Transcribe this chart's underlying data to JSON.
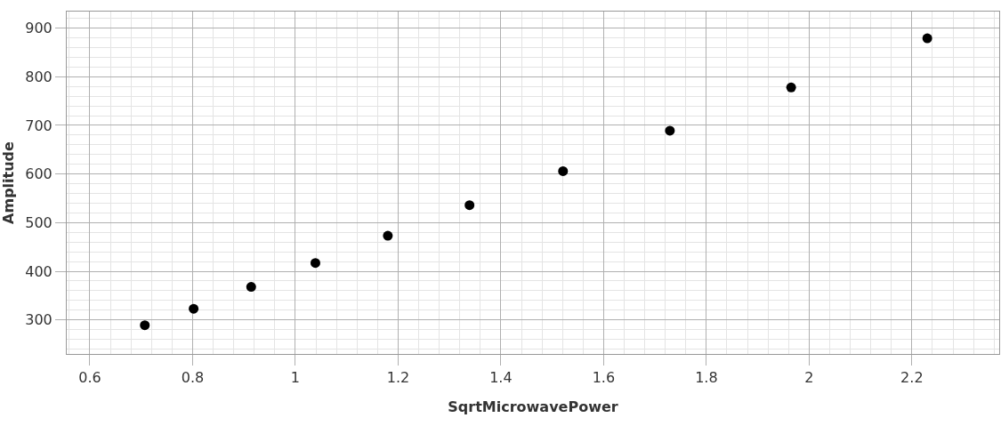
{
  "chart_data": {
    "type": "scatter",
    "xlabel": "SqrtMicrowavePower",
    "ylabel": "Amplitude",
    "x": [
      0.707,
      0.802,
      0.914,
      1.039,
      1.18,
      1.339,
      1.521,
      1.729,
      1.965,
      2.23
    ],
    "series": [
      {
        "color": "#000000",
        "values": [
          289,
          323,
          368,
          417,
          473,
          536,
          606,
          689,
          778,
          879
        ]
      }
    ],
    "xlim": [
      0.555,
      2.37
    ],
    "ylim": [
      230,
      934
    ],
    "xticks": [
      0.6,
      0.8,
      {
        "value": 1,
        "label": "1"
      },
      1.2,
      1.4,
      1.6,
      1.8,
      {
        "value": 2,
        "label": "2"
      },
      2.2
    ],
    "yticks": [
      300,
      400,
      500,
      600,
      700,
      800,
      900
    ],
    "grid": true,
    "marker": "circle"
  }
}
